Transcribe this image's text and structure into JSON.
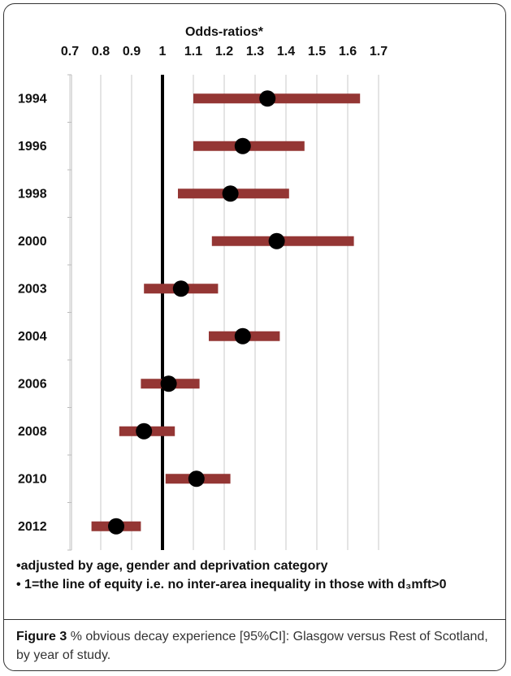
{
  "chart_data": {
    "type": "forest",
    "title": "Odds-ratios*",
    "categories": [
      "1994",
      "1996",
      "1998",
      "2000",
      "2003",
      "2004",
      "2006",
      "2008",
      "2010",
      "2012"
    ],
    "values": [
      1.34,
      1.26,
      1.22,
      1.37,
      1.06,
      1.26,
      1.02,
      0.94,
      1.11,
      0.85
    ],
    "lower": [
      1.1,
      1.1,
      1.05,
      1.16,
      0.94,
      1.15,
      0.93,
      0.86,
      1.01,
      0.77
    ],
    "upper": [
      1.64,
      1.46,
      1.41,
      1.62,
      1.18,
      1.38,
      1.12,
      1.04,
      1.22,
      0.93
    ],
    "xlim": [
      0.7,
      1.7
    ],
    "xticks": [
      0.7,
      0.8,
      0.9,
      1,
      1.1,
      1.2,
      1.3,
      1.4,
      1.5,
      1.6,
      1.7
    ],
    "ci_color": "#943634",
    "point_color": "#000000",
    "reference_line": 1,
    "grid": true
  },
  "notes": [
    "•adjusted by age, gender and deprivation category",
    "• 1=the line of equity i.e. no inter-area inequality in those with d₃mft>0"
  ],
  "caption": {
    "label": "Figure 3",
    "text": "% obvious decay experience [95%CI]: Glasgow versus Rest of Scotland, by year of study."
  }
}
